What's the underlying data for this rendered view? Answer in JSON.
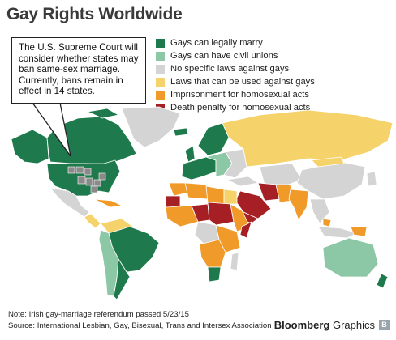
{
  "title": "Gay Rights Worldwide",
  "callout": {
    "lines": [
      "The U.S. Supreme Court will",
      "consider whether states may",
      "ban same-sex marriage.",
      "Currently, bans remain in",
      "effect in 14 states."
    ]
  },
  "legend": [
    {
      "label": "Gays can legally marry",
      "color": "#1e7a4c"
    },
    {
      "label": "Gays can have civil unions",
      "color": "#8cc7a6"
    },
    {
      "label": "No specific laws against gays",
      "color": "#d4d4d4"
    },
    {
      "label": "Laws that can be used against gays",
      "color": "#f6d26a"
    },
    {
      "label": "Imprisonment for homosexual acts",
      "color": "#f09a2a"
    },
    {
      "label": "Death penalty for homosexual acts",
      "color": "#a61f24"
    }
  ],
  "colors": {
    "marry": "#1e7a4c",
    "civil": "#8cc7a6",
    "none": "#d4d4d4",
    "laws": "#f6d26a",
    "prison": "#f09a2a",
    "death": "#a61f24",
    "ban_state": "#8a8a8a"
  },
  "footnotes": {
    "note": "Note: Irish gay-marriage referendum passed 5/23/15",
    "source": "Source: International Lesbian, Gay, Bisexual, Trans and Intersex Association"
  },
  "brand": {
    "name": "Bloomberg",
    "suffix": "Graphics",
    "mark": "B"
  }
}
